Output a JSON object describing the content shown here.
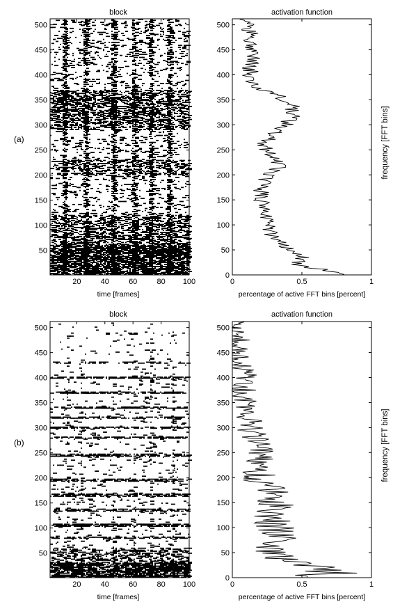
{
  "figure": {
    "panels": [
      {
        "label": "(a)",
        "right_ylabel": "frequency [FFT bins]"
      },
      {
        "label": "(b)",
        "right_ylabel": "frequency [FFT bins]"
      }
    ]
  },
  "chart_data": [
    {
      "type": "heatmap",
      "title": "block",
      "xlabel": "time [frames]",
      "ylabel": "",
      "xlim": [
        1,
        100
      ],
      "ylim": [
        1,
        512
      ],
      "xticks": [
        20,
        40,
        60,
        80,
        100
      ],
      "yticks": [
        50,
        100,
        150,
        200,
        250,
        300,
        350,
        400,
        450,
        500
      ],
      "values": "binary matrix (512 FFT bins x 100 frames) of active bins; dense activity below ~60 bins and around 300-360 bins, with vertical onsets near frames 10, 25, 45, 60, 72, 85"
    },
    {
      "type": "line",
      "title": "activation function",
      "xlabel": "percentage of active FFT bins [percent]",
      "ylabel": "frequency [FFT bins]",
      "xlim": [
        0,
        1
      ],
      "ylim": [
        0,
        512
      ],
      "xticks": [
        0,
        0.5,
        1
      ],
      "yticks": [
        0,
        50,
        100,
        150,
        200,
        250,
        300,
        350,
        400,
        450,
        500
      ],
      "profile": [
        [
          0,
          0.8
        ],
        [
          10,
          0.65
        ],
        [
          20,
          0.45
        ],
        [
          35,
          0.5
        ],
        [
          50,
          0.45
        ],
        [
          60,
          0.35
        ],
        [
          80,
          0.28
        ],
        [
          100,
          0.27
        ],
        [
          120,
          0.24
        ],
        [
          140,
          0.22
        ],
        [
          160,
          0.2
        ],
        [
          180,
          0.22
        ],
        [
          200,
          0.25
        ],
        [
          220,
          0.35
        ],
        [
          240,
          0.28
        ],
        [
          260,
          0.22
        ],
        [
          280,
          0.28
        ],
        [
          300,
          0.38
        ],
        [
          320,
          0.45
        ],
        [
          340,
          0.42
        ],
        [
          360,
          0.32
        ],
        [
          380,
          0.15
        ],
        [
          400,
          0.12
        ],
        [
          420,
          0.14
        ],
        [
          440,
          0.16
        ],
        [
          460,
          0.14
        ],
        [
          480,
          0.13
        ],
        [
          500,
          0.1
        ],
        [
          512,
          0.08
        ]
      ]
    },
    {
      "type": "heatmap",
      "title": "block",
      "xlabel": "time [frames]",
      "ylabel": "",
      "xlim": [
        1,
        100
      ],
      "ylim": [
        1,
        512
      ],
      "xticks": [
        20,
        40,
        60,
        80,
        100
      ],
      "yticks": [
        50,
        100,
        150,
        200,
        250,
        300,
        350,
        400,
        450,
        500
      ],
      "values": "binary matrix (512 FFT bins x 100 frames) of active bins; sparse, with horizontal harmonic lines (e.g. near bins 80, 105, 135, 165, 195, 245) and dense activity below ~30 bins"
    },
    {
      "type": "line",
      "title": "activation function",
      "xlabel": "percentage of active FFT bins [percent]",
      "ylabel": "frequency [FFT bins]",
      "xlim": [
        0,
        1
      ],
      "ylim": [
        0,
        512
      ],
      "xticks": [
        0,
        0.5,
        1
      ],
      "yticks": [
        0,
        50,
        100,
        150,
        200,
        250,
        300,
        350,
        400,
        450,
        500
      ],
      "profile": [
        [
          0,
          0.5
        ],
        [
          10,
          0.8
        ],
        [
          20,
          0.6
        ],
        [
          30,
          0.4
        ],
        [
          50,
          0.3
        ],
        [
          80,
          0.35
        ],
        [
          105,
          0.3
        ],
        [
          135,
          0.3
        ],
        [
          165,
          0.32
        ],
        [
          195,
          0.2
        ],
        [
          245,
          0.2
        ],
        [
          300,
          0.12
        ],
        [
          350,
          0.1
        ],
        [
          400,
          0.08
        ],
        [
          450,
          0.05
        ],
        [
          512,
          0.03
        ]
      ]
    }
  ]
}
